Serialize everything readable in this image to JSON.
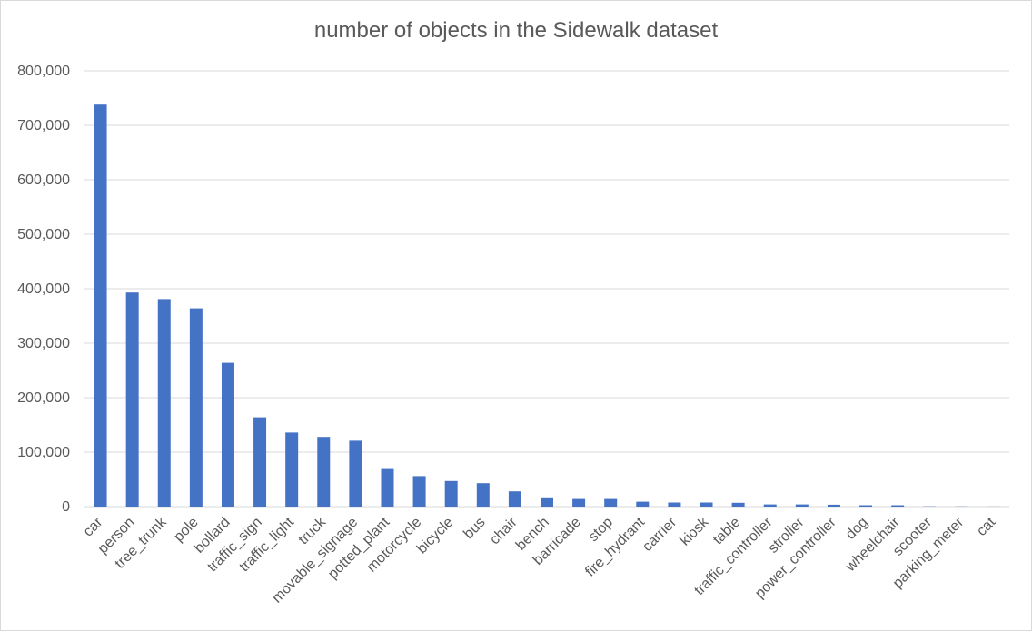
{
  "chart_data": {
    "type": "bar",
    "title": "number of objects in the Sidewalk dataset",
    "xlabel": "",
    "ylabel": "",
    "ylim": [
      0,
      800000
    ],
    "yticks": [
      "0",
      "100,000",
      "200,000",
      "300,000",
      "400,000",
      "500,000",
      "600,000",
      "700,000",
      "800,000"
    ],
    "grid": true,
    "bar_color": "#4472c4",
    "grid_color": "#d9d9d9",
    "categories": [
      "car",
      "person",
      "tree_trunk",
      "pole",
      "bollard",
      "traffic_sign",
      "traffic_light",
      "truck",
      "movable_signage",
      "potted_plant",
      "motorcycle",
      "bicycle",
      "bus",
      "chair",
      "bench",
      "barricade",
      "stop",
      "fire_hydrant",
      "carrier",
      "kiosk",
      "table",
      "traffic_controller",
      "stroller",
      "power_controller",
      "dog",
      "wheelchair",
      "scooter",
      "parking_meter",
      "cat"
    ],
    "values": [
      738000,
      393000,
      381000,
      364000,
      264000,
      164000,
      136000,
      128000,
      121000,
      69000,
      56000,
      47000,
      43000,
      28000,
      17000,
      14000,
      14000,
      9000,
      7500,
      7500,
      7000,
      4000,
      4000,
      3500,
      2500,
      2500,
      500,
      400,
      200
    ]
  }
}
